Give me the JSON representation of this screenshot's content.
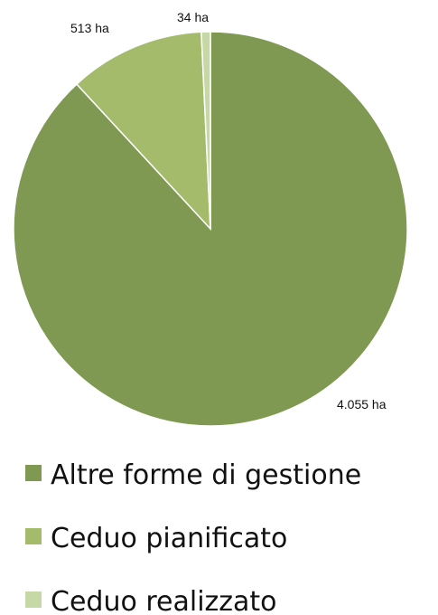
{
  "chart_data": {
    "type": "pie",
    "title": "",
    "unit": "ha",
    "legend_position": "bottom",
    "slices": [
      {
        "name": "Altre forme di gestione",
        "value": 4055,
        "label": "4.055 ha",
        "color": "#7f9952"
      },
      {
        "name": "Ceduo pianificato",
        "value": 513,
        "label": "513 ha",
        "color": "#a3bb6a"
      },
      {
        "name": "Ceduo realizzato",
        "value": 34,
        "label": "34 ha",
        "color": "#c6d8a5"
      }
    ]
  }
}
